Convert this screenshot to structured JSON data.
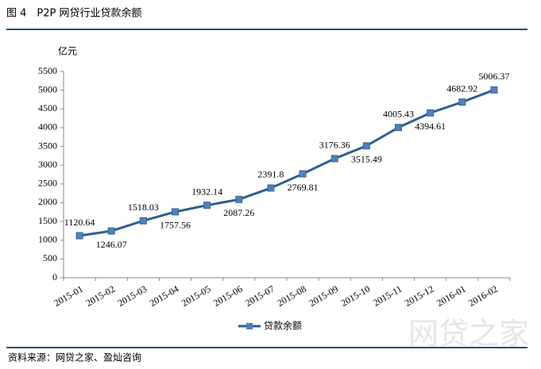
{
  "header": {
    "title": "图 4　P2P 网贷行业贷款余额"
  },
  "chart_data": {
    "type": "line",
    "y_unit": "亿元",
    "categories": [
      "2015-01",
      "2015-02",
      "2015-03",
      "2015-04",
      "2015-05",
      "2015-06",
      "2015-07",
      "2015-08",
      "2015-09",
      "2015-10",
      "2015-11",
      "2015-12",
      "2016-01",
      "2016-02"
    ],
    "series": [
      {
        "name": "贷款余额",
        "color": "#2f5f8f",
        "values": [
          1120.64,
          1246.07,
          1518.03,
          1757.56,
          1932.14,
          2087.26,
          2391.8,
          2769.81,
          3176.36,
          3515.49,
          4005.43,
          4394.61,
          4682.92,
          5006.37
        ]
      }
    ],
    "ylim": [
      0,
      5500
    ],
    "yticks": [
      0,
      500,
      1000,
      1500,
      2000,
      2500,
      3000,
      3500,
      4000,
      4500,
      5000,
      5500
    ],
    "grid": false,
    "legend": "bottom"
  },
  "footer": {
    "source": "资料来源：网贷之家、盈灿咨询",
    "watermark": "网贷之家"
  }
}
